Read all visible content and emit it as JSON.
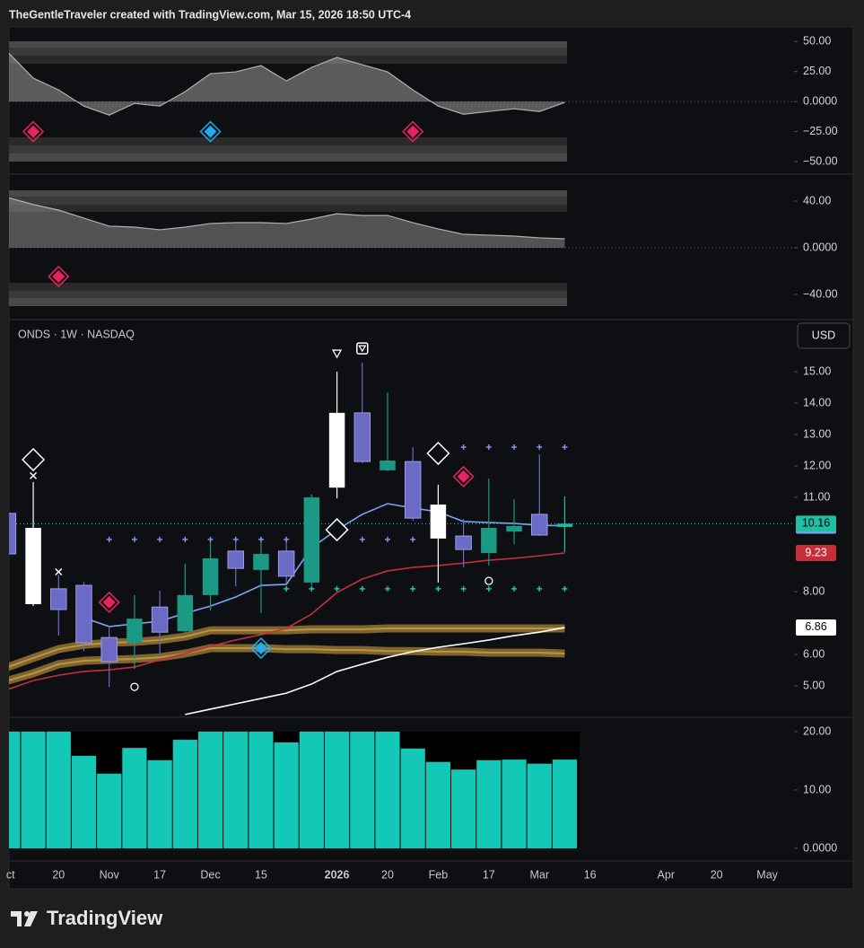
{
  "header": "TheGentleTraveler created with TradingView.com, Mar 15, 2026 18:50 UTC-4",
  "footer": "TradingView",
  "chart_data": [
    {
      "type": "area",
      "color": "#9a9a9a",
      "xlim": [
        0.04,
        31.06
      ],
      "ylim": [
        -59.7,
        62.2
      ],
      "yticks": [
        {
          "value": 50,
          "label": "50.00"
        },
        {
          "value": 25,
          "label": "25.00"
        },
        {
          "value": 0,
          "label": "0.0000"
        },
        {
          "value": -25,
          "label": "−25.00"
        },
        {
          "value": -50,
          "label": "−50.00"
        }
      ],
      "x": [
        0,
        1,
        2,
        3,
        4,
        5,
        6,
        7,
        8,
        9,
        10,
        11,
        12,
        13,
        14,
        15,
        16,
        17,
        18,
        19,
        20,
        21,
        22
      ],
      "values": [
        41,
        19.5,
        9.75,
        -3.75,
        -11.25,
        -1.5,
        -3.75,
        8.25,
        23.25,
        24.75,
        30,
        17.25,
        28.5,
        36.75,
        30.75,
        24.75,
        9.75,
        -3.75,
        -10.5,
        -8.25,
        -6,
        -8.25,
        -0.75
      ],
      "markers": [
        {
          "shape": "diamond",
          "color": "#e8245e",
          "x": [
            1,
            16
          ],
          "values": [
            -25,
            -25
          ]
        },
        {
          "shape": "diamond",
          "color": "#22aaee",
          "x": [
            8
          ],
          "values": [
            -25
          ]
        }
      ]
    },
    {
      "type": "area",
      "color": "#8c8c8c",
      "xlim": [
        0.04,
        31.06
      ],
      "ylim": [
        -60.8,
        62.3
      ],
      "yticks": [
        {
          "value": 40,
          "label": "40.00"
        },
        {
          "value": 0,
          "label": "0.0000"
        },
        {
          "value": -40,
          "label": "−40.00"
        }
      ],
      "x": [
        0,
        1,
        2,
        3,
        4,
        5,
        6,
        7,
        8,
        9,
        10,
        11,
        12,
        13,
        14,
        15,
        16,
        17,
        18,
        19,
        20,
        21,
        22
      ],
      "values": [
        43,
        37,
        32.3,
        25.4,
        18.5,
        17.7,
        15.4,
        17.7,
        20.8,
        21.5,
        21.5,
        20.8,
        24.6,
        29.2,
        27.7,
        27.7,
        21.5,
        16.2,
        11.5,
        10.8,
        10,
        8.5,
        7.7
      ],
      "markers": [
        {
          "shape": "diamond",
          "color": "#e8245e",
          "x": [
            2
          ],
          "values": [
            -24.6
          ]
        }
      ]
    },
    {
      "type": "candlestick",
      "title": "ONDS · 1W · NASDAQ",
      "currency": "USD",
      "xlim": [
        0.04,
        31.06
      ],
      "ylim": [
        4.03,
        16.6
      ],
      "yticks": [
        {
          "value": 15,
          "label": "15.00"
        },
        {
          "value": 14,
          "label": "14.00"
        },
        {
          "value": 13,
          "label": "13.00"
        },
        {
          "value": 12,
          "label": "12.00"
        },
        {
          "value": 11,
          "label": "11.00"
        },
        {
          "value": 8,
          "label": "8.00"
        },
        {
          "value": 6,
          "label": "6.00"
        },
        {
          "value": 5,
          "label": "5.00"
        }
      ],
      "x": [
        0,
        1,
        2,
        3,
        4,
        5,
        6,
        7,
        8,
        9,
        10,
        11,
        12,
        13,
        14,
        15,
        16,
        17,
        18,
        19,
        20,
        21,
        22
      ],
      "open": [
        10.49,
        10.03,
        8.09,
        8.2,
        6.54,
        6.37,
        7.51,
        6.74,
        7.89,
        9.29,
        8.69,
        9.29,
        8.29,
        11.31,
        13.69,
        11.86,
        12.14,
        10.77,
        9.77,
        9.23,
        9.91,
        10.46,
        10.06
      ],
      "high": [
        10.6,
        11.49,
        8.54,
        8.31,
        6.89,
        7.89,
        8.03,
        8.89,
        9.74,
        9.74,
        9.74,
        9.69,
        11.09,
        15.0,
        15.29,
        14.34,
        12.6,
        11.4,
        10.31,
        11.6,
        10.94,
        12.37,
        11.03
      ],
      "low": [
        9.1,
        7.54,
        6.6,
        6.11,
        4.97,
        5.54,
        5.97,
        6.69,
        7.4,
        8.17,
        7.31,
        8.26,
        8.2,
        10.97,
        12.09,
        11.83,
        10.26,
        8.29,
        8.77,
        8.83,
        9.51,
        9.77,
        9.26
      ],
      "close": [
        9.2,
        7.6,
        7.43,
        6.37,
        5.77,
        7.14,
        6.71,
        7.89,
        9.06,
        8.74,
        9.2,
        8.49,
        11.0,
        13.69,
        12.14,
        12.17,
        10.34,
        9.69,
        9.34,
        10.03,
        10.09,
        9.8,
        10.16
      ],
      "close_labels": [
        null,
        null,
        null,
        null,
        null,
        null,
        null,
        null,
        null,
        null,
        null,
        null,
        null,
        null,
        null,
        null,
        null,
        null,
        null,
        null,
        null,
        null,
        "10.16"
      ],
      "colors": [
        "#6b6bc6",
        "#ffffff",
        "#6b6bc6",
        "#6b6bc6",
        "#6b6bc6",
        "#1a9a84",
        "#6b6bc6",
        "#1a9a84",
        "#1a9a84",
        "#6b6bc6",
        "#1a9a84",
        "#6b6bc6",
        "#1a9a84",
        "#ffffff",
        "#6b6bc6",
        "#1a9a84",
        "#6b6bc6",
        "#ffffff",
        "#6b6bc6",
        "#1a9a84",
        "#1a9a84",
        "#6b6bc6",
        "#1fbfa6"
      ],
      "series": [
        {
          "style": "ribbon",
          "color": "#9c7a34",
          "values": [
            5.6,
            5.89,
            6.17,
            6.31,
            6.37,
            6.4,
            6.46,
            6.57,
            6.77,
            6.77,
            6.77,
            6.77,
            6.8,
            6.8,
            6.8,
            6.83,
            6.83,
            6.83,
            6.83,
            6.83,
            6.83,
            6.83,
            6.83
          ]
        },
        {
          "style": "ribbon",
          "color": "#9c7a34",
          "values": [
            5.17,
            5.4,
            5.69,
            5.8,
            5.83,
            5.86,
            5.91,
            6.03,
            6.2,
            6.2,
            6.2,
            6.17,
            6.17,
            6.14,
            6.14,
            6.11,
            6.11,
            6.09,
            6.09,
            6.06,
            6.06,
            6.06,
            6.03
          ]
        },
        {
          "style": "line",
          "color": "#ffffff",
          "values": [
            null,
            null,
            null,
            null,
            null,
            null,
            null,
            4.09,
            4.26,
            4.43,
            4.6,
            4.77,
            5.06,
            5.46,
            5.69,
            5.91,
            6.09,
            6.23,
            6.34,
            6.46,
            6.6,
            6.71,
            6.86
          ],
          "value_labels": [
            null,
            null,
            null,
            null,
            null,
            null,
            null,
            null,
            null,
            null,
            null,
            null,
            null,
            null,
            null,
            null,
            null,
            null,
            null,
            null,
            null,
            null,
            "6.86"
          ]
        },
        {
          "style": "line",
          "color": "#c62f3a",
          "values": [
            4.89,
            5.17,
            5.34,
            5.46,
            5.51,
            5.6,
            5.83,
            6.03,
            6.26,
            6.46,
            6.63,
            6.83,
            7.29,
            7.97,
            8.4,
            8.66,
            8.77,
            8.83,
            8.91,
            9.0,
            9.06,
            9.14,
            9.23
          ],
          "value_labels": [
            null,
            null,
            null,
            null,
            null,
            null,
            null,
            null,
            null,
            null,
            null,
            null,
            null,
            null,
            null,
            null,
            null,
            null,
            null,
            null,
            null,
            null,
            "9.23"
          ]
        },
        {
          "style": "line",
          "color": "#7ea3f5",
          "values": [
            null,
            null,
            null,
            7.17,
            6.89,
            6.97,
            7.06,
            7.31,
            7.54,
            7.83,
            8.2,
            8.23,
            9.4,
            9.97,
            10.46,
            10.8,
            10.66,
            10.54,
            10.23,
            10.2,
            10.17,
            10.11,
            10.1
          ],
          "value_labels": [
            null,
            null,
            null,
            null,
            null,
            null,
            null,
            null,
            null,
            null,
            null,
            null,
            null,
            null,
            null,
            null,
            null,
            null,
            null,
            null,
            null,
            null,
            "10.10"
          ]
        }
      ],
      "markers": [
        {
          "shape": "plus",
          "color": "#8b8bf0",
          "x": [
            4,
            5,
            6,
            7,
            8,
            9,
            10,
            11,
            14,
            15,
            16,
            18,
            19,
            20,
            21,
            22
          ],
          "values": [
            9.66,
            9.66,
            9.66,
            9.66,
            9.66,
            9.66,
            9.66,
            9.66,
            9.66,
            9.66,
            9.66,
            12.6,
            12.6,
            12.6,
            12.6,
            12.6
          ]
        },
        {
          "shape": "plus",
          "color": "#26c6a6",
          "x": [
            11,
            12,
            13,
            14,
            15,
            16,
            17,
            18,
            19,
            20,
            21,
            22
          ],
          "values": [
            8.09,
            8.09,
            8.09,
            8.09,
            8.09,
            8.09,
            8.09,
            8.09,
            8.09,
            8.09,
            8.09,
            8.09
          ]
        },
        {
          "shape": "hollow-diamond",
          "color": "#ffffff",
          "x": [
            1,
            13,
            17
          ],
          "values": [
            12.2,
            9.97,
            12.4
          ]
        },
        {
          "shape": "diamond",
          "color": "#e8245e",
          "x": [
            4,
            18
          ],
          "values": [
            7.66,
            11.66
          ]
        },
        {
          "shape": "diamond",
          "color": "#22aaee",
          "x": [
            10
          ],
          "values": [
            6.2
          ]
        },
        {
          "shape": "circle",
          "color": "#ffffff",
          "x": [
            5,
            19
          ],
          "values": [
            4.97,
            8.34
          ]
        },
        {
          "shape": "cross",
          "color": "#ffffff",
          "x": [
            1,
            2
          ],
          "values": [
            11.69,
            8.63
          ]
        },
        {
          "shape": "triangle-down",
          "color": "#ffffff",
          "x": [
            13
          ],
          "values": [
            15.57
          ]
        },
        {
          "shape": "boxed-triangle",
          "color": "#ffffff",
          "x": [
            14
          ],
          "values": [
            15.74
          ]
        }
      ]
    },
    {
      "type": "bar",
      "color": "#13c8b6",
      "xlim": [
        0.04,
        31.06
      ],
      "ylim": [
        -2,
        22.3
      ],
      "yticks": [
        {
          "value": 20,
          "label": "20.00"
        },
        {
          "value": 10,
          "label": "10.00"
        },
        {
          "value": 0,
          "label": "0.0000"
        }
      ],
      "x": [
        0,
        1,
        2,
        3,
        4,
        5,
        6,
        7,
        8,
        9,
        10,
        11,
        12,
        13,
        14,
        15,
        16,
        17,
        18,
        19,
        20,
        21,
        22
      ],
      "values": [
        20,
        20,
        20,
        15.85,
        12.8,
        17.2,
        15.1,
        18.6,
        20,
        20,
        20,
        18.15,
        20,
        20,
        20,
        20,
        17.1,
        14.8,
        13.5,
        15.1,
        15.2,
        14.5,
        15.2
      ],
      "xticks": [
        {
          "value": 0.1,
          "label": "ct"
        },
        {
          "value": 2,
          "label": "20"
        },
        {
          "value": 4,
          "label": "Nov"
        },
        {
          "value": 6,
          "label": "17"
        },
        {
          "value": 8,
          "label": "Dec"
        },
        {
          "value": 10,
          "label": "15"
        },
        {
          "value": 13,
          "label": "2026",
          "bold": true
        },
        {
          "value": 15,
          "label": "20"
        },
        {
          "value": 17,
          "label": "Feb"
        },
        {
          "value": 19,
          "label": "17"
        },
        {
          "value": 21,
          "label": "Mar"
        },
        {
          "value": 23,
          "label": "16"
        },
        {
          "value": 26,
          "label": "Apr"
        },
        {
          "value": 28,
          "label": "20"
        },
        {
          "value": 30,
          "label": "May"
        }
      ]
    }
  ]
}
